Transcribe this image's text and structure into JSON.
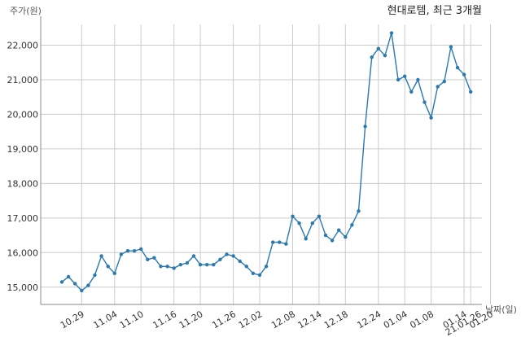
{
  "chart_data": {
    "type": "line",
    "title": "현대로템, 최근 3개월",
    "ylabel": "주가(원)",
    "xlabel": "날짜(일)",
    "ylim": [
      14500,
      22600
    ],
    "yticks": [
      15000,
      16000,
      17000,
      18000,
      19000,
      20000,
      21000,
      22000
    ],
    "ytick_labels": [
      "15,000",
      "16,000",
      "17,000",
      "18,000",
      "19,000",
      "20,000",
      "21,000",
      "22,000"
    ],
    "x_tick_positions": [
      3,
      8,
      12,
      17,
      21,
      26,
      30,
      35,
      39,
      43,
      48,
      52,
      56,
      61,
      65
    ],
    "x_tick_labels": [
      "10.29",
      "11.04",
      "11.10",
      "11.16",
      "11.20",
      "11.26",
      "12.02",
      "12.08",
      "12.14",
      "12.18",
      "12.24",
      "01.04",
      "01.08",
      "01.14",
      "01.20"
    ],
    "x_end_label": "21.01.26",
    "grid": true,
    "line_color": "#2a7ab0",
    "series": [
      {
        "values": [
          15150,
          15300,
          15100,
          14900,
          15050,
          15350,
          15900,
          15600,
          15400,
          15950,
          16050,
          16050,
          16100,
          15800,
          15850,
          15600,
          15600,
          15550,
          15650,
          15700,
          15900,
          15650,
          15650,
          15650,
          15800,
          15950,
          15900,
          15750,
          15600,
          15400,
          15350,
          15600,
          16300,
          16300,
          16250,
          17050,
          16850,
          16400,
          16850,
          17050,
          16500,
          16350,
          16650,
          16450,
          16800,
          17200,
          19650,
          21650,
          21900,
          21700,
          22350,
          21000,
          21100,
          20650,
          21000,
          20350,
          19900,
          20800,
          20950,
          21950,
          21350,
          21150,
          20650
        ]
      }
    ]
  }
}
